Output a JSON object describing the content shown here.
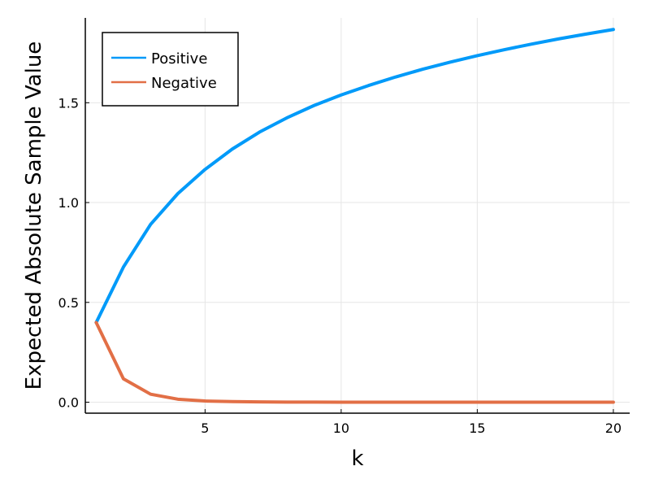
{
  "chart_data": {
    "type": "line",
    "xlabel": "k",
    "ylabel": "Expected Absolute Sample Value",
    "xlim": [
      0.6,
      20.6
    ],
    "ylim": [
      -0.055,
      1.925
    ],
    "xticks": [
      5,
      10,
      15,
      20
    ],
    "yticks": [
      0.0,
      0.5,
      1.0,
      1.5
    ],
    "xtick_labels": [
      "5",
      "10",
      "15",
      "20"
    ],
    "ytick_labels": [
      "0.0",
      "0.5",
      "1.0",
      "1.5"
    ],
    "grid": true,
    "legend_position": "top-left",
    "x": [
      1,
      2,
      3,
      4,
      5,
      6,
      7,
      8,
      9,
      10,
      11,
      12,
      13,
      14,
      15,
      16,
      17,
      18,
      19,
      20
    ],
    "series": [
      {
        "name": "Positive",
        "color": "#009AF9",
        "values": [
          0.399,
          0.677,
          0.891,
          1.045,
          1.166,
          1.268,
          1.353,
          1.424,
          1.486,
          1.539,
          1.586,
          1.629,
          1.668,
          1.703,
          1.736,
          1.766,
          1.794,
          1.82,
          1.844,
          1.867
        ]
      },
      {
        "name": "Negative",
        "color": "#E26F46",
        "values": [
          0.399,
          0.117,
          0.04,
          0.015,
          0.006,
          0.003,
          0.0013,
          0.0007,
          0.0003,
          0.0002,
          0.0001,
          0.0001,
          0,
          0,
          0,
          0,
          0,
          0,
          0,
          0
        ]
      }
    ]
  }
}
